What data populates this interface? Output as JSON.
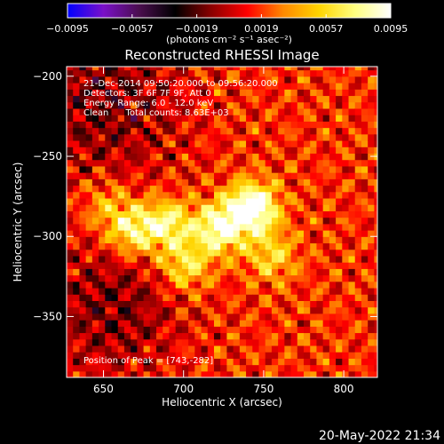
{
  "chart_data": {
    "type": "heatmap",
    "title": "Reconstructed RHESSI Image",
    "xlabel": "Heliocentric X (arcsec)",
    "ylabel": "Heliocentric Y (arcsec)",
    "xlim": [
      627,
      821
    ],
    "ylim": [
      -388,
      -194
    ],
    "x_ticks": [
      650,
      700,
      750,
      800
    ],
    "y_ticks": [
      -200,
      -250,
      -300,
      -350
    ],
    "x_tick_labels": [
      "650",
      "700",
      "750",
      "800"
    ],
    "y_tick_labels": [
      "−200",
      "−250",
      "−300",
      "−350"
    ],
    "colorbar": {
      "min": -0.0095,
      "max": 0.0095,
      "ticks": [
        -0.0095,
        -0.0057,
        -0.0019,
        0.0019,
        0.0057,
        0.0095
      ],
      "tick_labels": [
        "−0.0095",
        "−0.0057",
        "−0.0019",
        "0.0019",
        "0.0057",
        "0.0095"
      ],
      "unit_label": "(photons cm⁻² s⁻¹ asec⁻²)"
    },
    "annotations": [
      "21-Dec-2014 09:50:20.000 to 09:56:20.000",
      "Detectors: 3F 6F 7F 9F, Att 0",
      "Energy Range: 6.0 - 12.0 keV",
      "Clean      Total counts: 8.63E+03"
    ],
    "peak_label": "Position of Peak = [743,-282]",
    "peak_position": [
      743,
      -282
    ],
    "sources": [
      {
        "x": 743,
        "y": -282,
        "amp": 0.0095
      },
      {
        "x": 722,
        "y": -295,
        "amp": 0.0072
      },
      {
        "x": 690,
        "y": -292,
        "amp": 0.006
      },
      {
        "x": 668,
        "y": -296,
        "amp": 0.0058
      },
      {
        "x": 701,
        "y": -318,
        "amp": 0.005
      },
      {
        "x": 755,
        "y": -312,
        "amp": 0.004
      },
      {
        "x": 652,
        "y": -280,
        "amp": 0.003
      }
    ],
    "colormap": [
      "#0000ff",
      "#7a10c8",
      "#4a0e4e",
      "#000000",
      "#8a0000",
      "#ff0000",
      "#ff8800",
      "#ffd400",
      "#ffff80",
      "#ffffff"
    ],
    "grid": false
  },
  "footer": {
    "timestamp": "20-May-2022 21:34"
  }
}
